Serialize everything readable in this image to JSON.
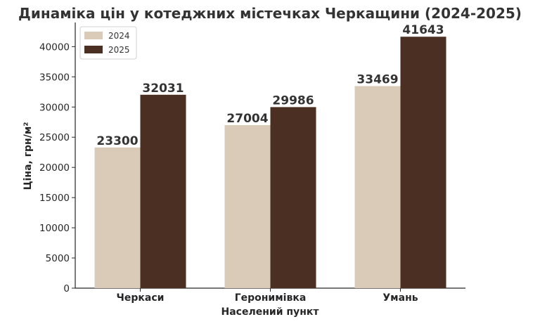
{
  "chart_data": {
    "type": "bar",
    "title": "Динаміка цін у котеджних містечках Черкащини (2024-2025)",
    "xlabel": "Населений пункт",
    "ylabel": "Ціна, грн/м²",
    "categories": [
      "Черкаси",
      "Геронимівка",
      "Умань"
    ],
    "series": [
      {
        "name": "2024",
        "values": [
          23300,
          27004,
          33469
        ],
        "color": "#d9cbb8"
      },
      {
        "name": "2025",
        "values": [
          32031,
          29986,
          41643
        ],
        "color": "#4a2f22"
      }
    ],
    "ylim": [
      0,
      44000
    ],
    "yticks": [
      0,
      5000,
      10000,
      15000,
      20000,
      25000,
      30000,
      35000,
      40000
    ],
    "grid": false,
    "legend_position": "top-left",
    "data_labels": true
  }
}
